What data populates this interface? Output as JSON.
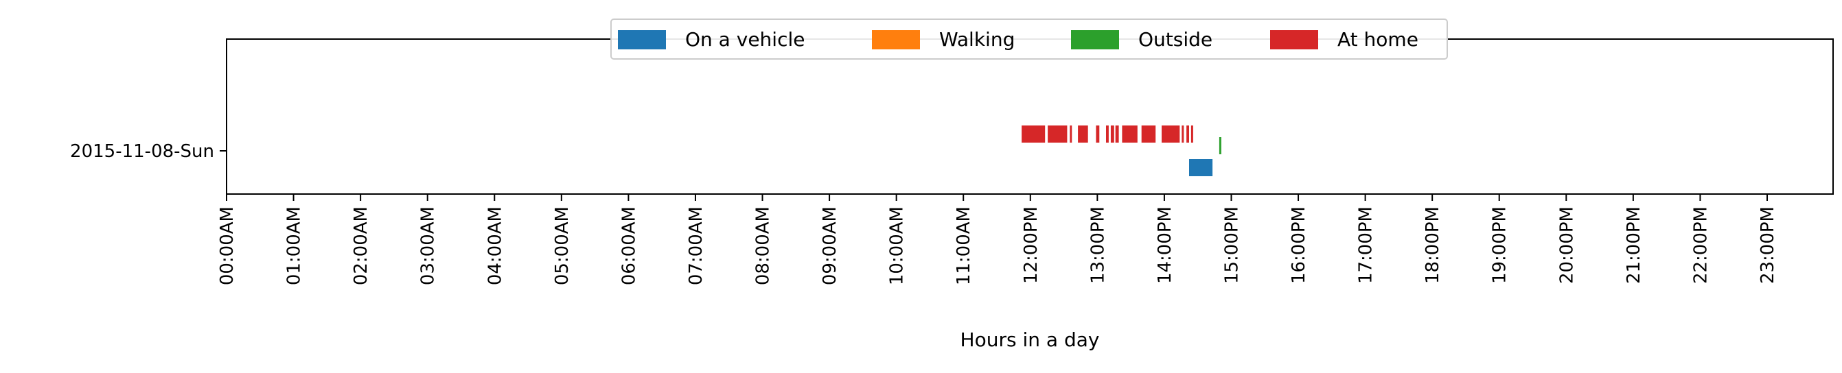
{
  "chart_data": {
    "type": "timeline",
    "title": "",
    "xlabel": "Hours in a day",
    "ylabel": "",
    "xlim": [
      0,
      24
    ],
    "grid": false,
    "legend_position": "top-center",
    "x_tick_labels": [
      "00:00AM",
      "01:00AM",
      "02:00AM",
      "03:00AM",
      "04:00AM",
      "05:00AM",
      "06:00AM",
      "07:00AM",
      "08:00AM",
      "09:00AM",
      "10:00AM",
      "11:00AM",
      "12:00PM",
      "13:00PM",
      "14:00PM",
      "15:00PM",
      "16:00PM",
      "17:00PM",
      "18:00PM",
      "19:00PM",
      "20:00PM",
      "21:00PM",
      "22:00PM",
      "23:00PM"
    ],
    "y_categories": [
      "2015-11-08-Sun"
    ],
    "series": [
      {
        "name": "On a vehicle",
        "color": "#1f77b4",
        "segments": [
          [
            14.37,
            14.72
          ]
        ]
      },
      {
        "name": "Walking",
        "color": "#ff7f0e",
        "segments": []
      },
      {
        "name": "Outside",
        "color": "#2ca02c",
        "segments": [
          [
            14.82,
            14.85
          ]
        ]
      },
      {
        "name": "At home",
        "color": "#d62728",
        "segments": [
          [
            11.87,
            12.22
          ],
          [
            12.26,
            12.55
          ],
          [
            12.59,
            12.62
          ],
          [
            12.71,
            12.86
          ],
          [
            12.98,
            13.03
          ],
          [
            13.13,
            13.17
          ],
          [
            13.2,
            13.25
          ],
          [
            13.27,
            13.32
          ],
          [
            13.37,
            13.6
          ],
          [
            13.66,
            13.87
          ],
          [
            13.96,
            14.23
          ],
          [
            14.26,
            14.29
          ],
          [
            14.33,
            14.37
          ],
          [
            14.4,
            14.43
          ]
        ]
      }
    ]
  }
}
